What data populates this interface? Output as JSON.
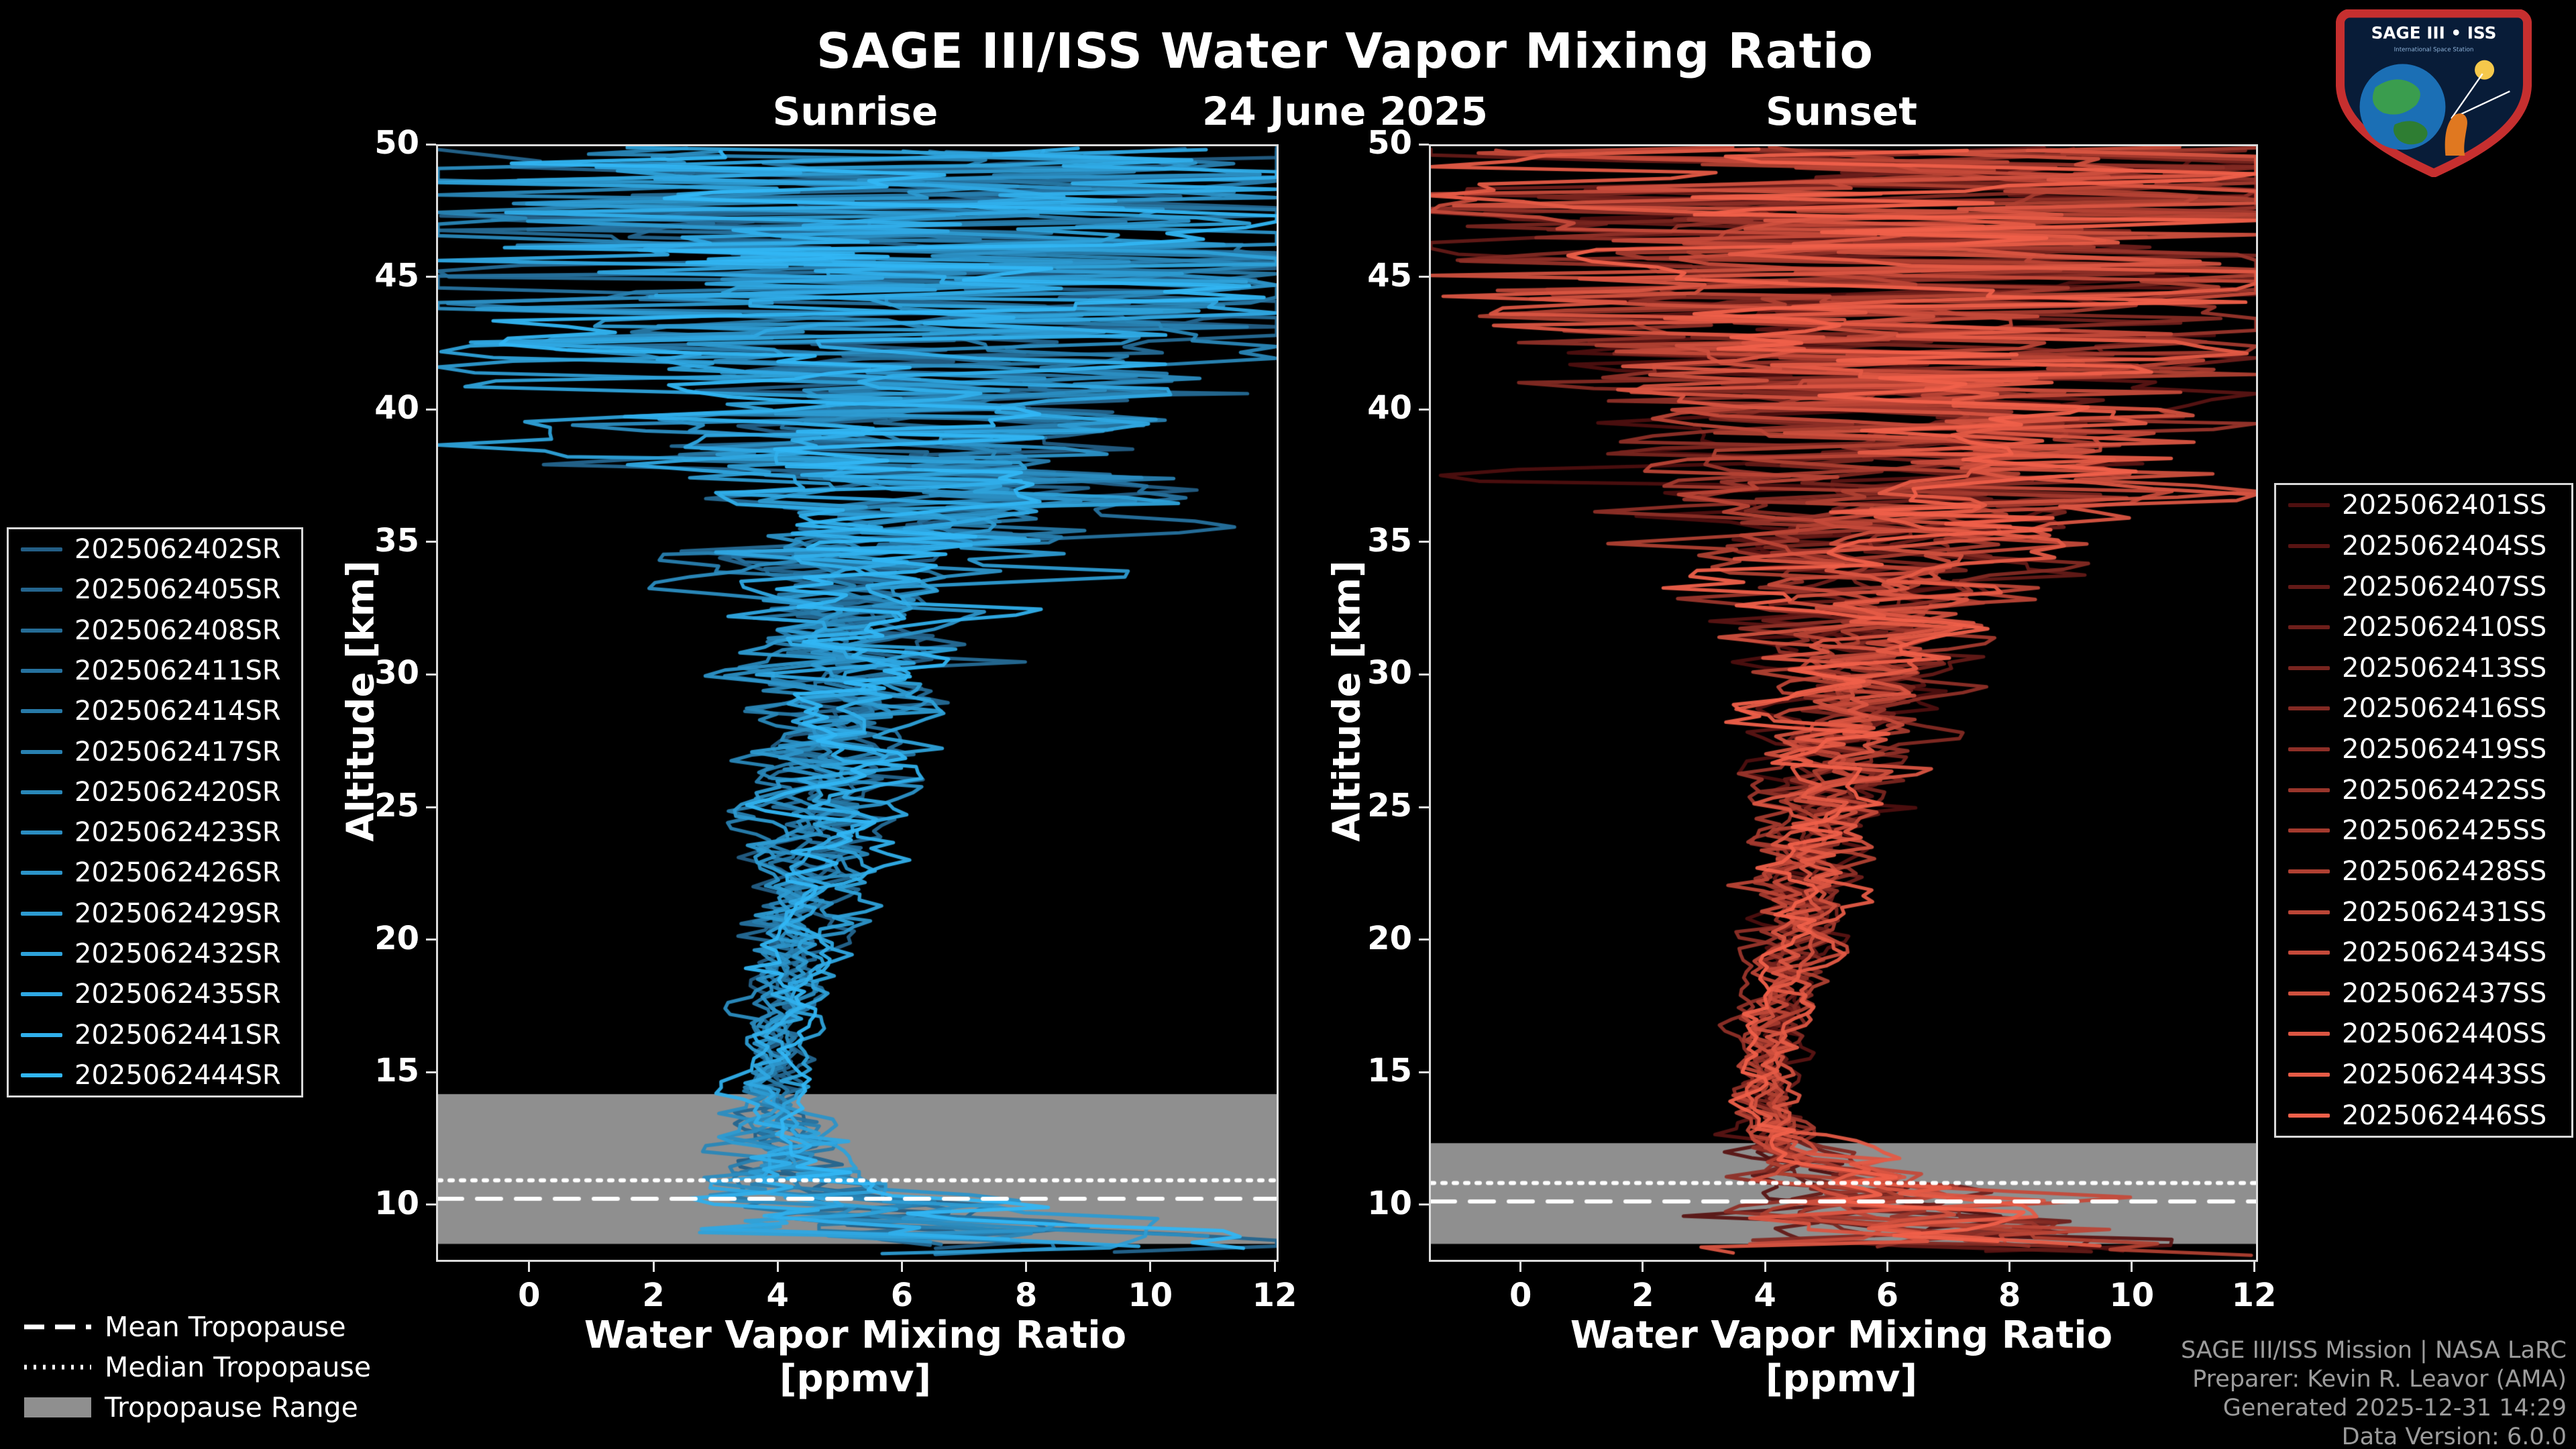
{
  "title": "SAGE III/ISS Water Vapor Mixing Ratio",
  "date_label": "24 June 2025",
  "ylabel": "Altitude [km]",
  "xlabel_line1": "Water Vapor Mixing Ratio",
  "xlabel_line2": "[ppmv]",
  "tropopause_legend": {
    "mean": "Mean Tropopause",
    "median": "Median Tropopause",
    "range": "Tropopause Range"
  },
  "credits": [
    "SAGE III/ISS Mission | NASA LaRC",
    "Preparer: Kevin R. Leavor (AMA)",
    "Generated 2025-12-31 14:29",
    "Data Version: 6.0.0"
  ],
  "logo": {
    "title": "SAGE III • ISS"
  },
  "chart_data": {
    "type": "line",
    "title": "SAGE III/ISS Water Vapor Mixing Ratio",
    "subtitle": "24 June 2025",
    "xlabel": "Water Vapor Mixing Ratio [ppmv]",
    "ylabel": "Altitude [km]",
    "xlim": [
      -1.5,
      12
    ],
    "ylim": [
      8,
      50
    ],
    "x_ticks": [
      0,
      2,
      4,
      6,
      8,
      10,
      12
    ],
    "y_ticks": [
      10,
      15,
      20,
      25,
      30,
      35,
      40,
      45,
      50
    ],
    "grid": false,
    "band_color": "#8f8f8f",
    "trop_line_color": "#ffffff",
    "panels": [
      {
        "id": "sunrise",
        "label": "Sunrise",
        "color_dark": "#235e85",
        "color_bright": "#31b6f4",
        "tropopause": {
          "mean_km": 10.3,
          "median_km": 11.0,
          "range_km": [
            8.6,
            14.25
          ]
        },
        "series": [
          "2025062402SR",
          "2025062405SR",
          "2025062408SR",
          "2025062411SR",
          "2025062414SR",
          "2025062417SR",
          "2025062420SR",
          "2025062423SR",
          "2025062426SR",
          "2025062429SR",
          "2025062432SR",
          "2025062435SR",
          "2025062441SR",
          "2025062444SR"
        ]
      },
      {
        "id": "sunset",
        "label": "Sunset",
        "color_dark": "#4d0f0f",
        "color_bright": "#f0604a",
        "tropopause": {
          "mean_km": 10.2,
          "median_km": 10.9,
          "range_km": [
            8.6,
            12.4
          ]
        },
        "series": [
          "2025062401SS",
          "2025062404SS",
          "2025062407SS",
          "2025062410SS",
          "2025062413SS",
          "2025062416SS",
          "2025062419SS",
          "2025062422SS",
          "2025062425SS",
          "2025062428SS",
          "2025062431SS",
          "2025062434SS",
          "2025062437SS",
          "2025062440SS",
          "2025062443SS",
          "2025062446SS"
        ]
      }
    ],
    "profile": {
      "altitudes_km": [
        8.5,
        9,
        10,
        11,
        12,
        13,
        14,
        15,
        16,
        18,
        20,
        22,
        24,
        26,
        28,
        30,
        32,
        34,
        36,
        38,
        40,
        42,
        44,
        46,
        48,
        50
      ],
      "mean_ppmv": [
        7.8,
        6.8,
        5.6,
        4.9,
        4.4,
        4.1,
        3.9,
        3.85,
        3.95,
        4.15,
        4.35,
        4.55,
        4.75,
        4.95,
        5.1,
        5.25,
        5.4,
        5.55,
        5.7,
        5.85,
        6.0,
        6.1,
        6.2,
        6.3,
        6.4,
        6.5
      ],
      "noise_sigma_ppmv": [
        2.6,
        2.1,
        1.3,
        0.8,
        0.5,
        0.35,
        0.28,
        0.24,
        0.24,
        0.28,
        0.33,
        0.4,
        0.5,
        0.62,
        0.75,
        0.9,
        1.1,
        1.4,
        1.8,
        2.3,
        2.9,
        3.4,
        3.9,
        4.3,
        4.7,
        5.0
      ]
    }
  }
}
